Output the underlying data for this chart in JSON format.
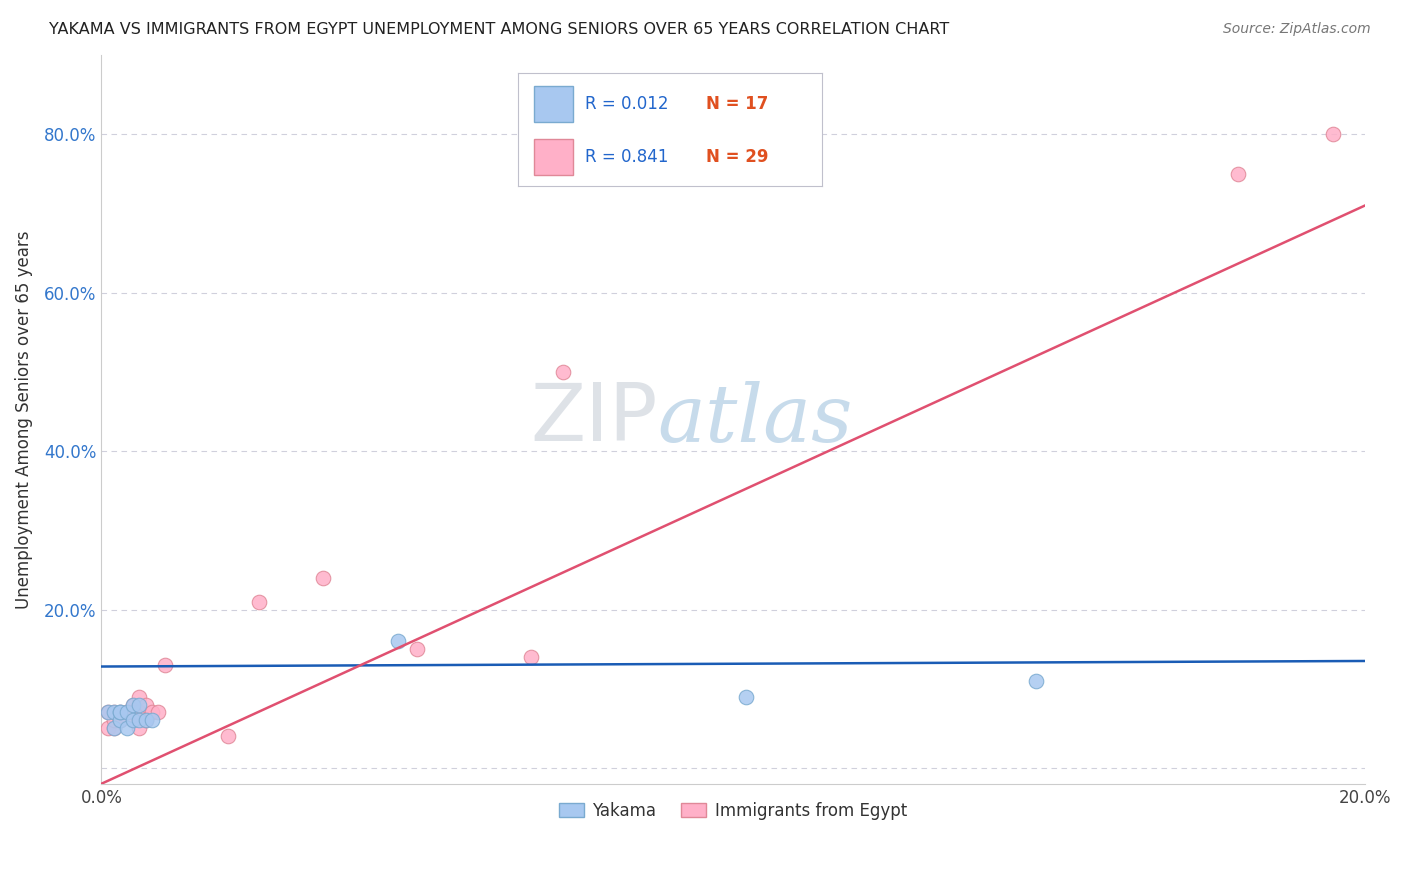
{
  "title": "YAKAMA VS IMMIGRANTS FROM EGYPT UNEMPLOYMENT AMONG SENIORS OVER 65 YEARS CORRELATION CHART",
  "source": "Source: ZipAtlas.com",
  "ylabel": "Unemployment Among Seniors over 65 years",
  "xlim": [
    0.0,
    0.2
  ],
  "ylim": [
    -0.02,
    0.9
  ],
  "x_ticks": [
    0.0,
    0.05,
    0.1,
    0.15,
    0.2
  ],
  "x_tick_labels": [
    "0.0%",
    "",
    "",
    "",
    "20.0%"
  ],
  "y_ticks": [
    0.0,
    0.2,
    0.4,
    0.6,
    0.8
  ],
  "y_tick_labels": [
    "",
    "20.0%",
    "40.0%",
    "60.0%",
    "80.0%"
  ],
  "yakama_color": "#a8c8f0",
  "yakama_edge": "#7aaad0",
  "egypt_color": "#ffb0c8",
  "egypt_edge": "#e08898",
  "yakama_line_color": "#1a5cb5",
  "egypt_line_color": "#e05070",
  "watermark_zip": "ZIP",
  "watermark_atlas": "atlas",
  "grid_color": "#d0d0dc",
  "legend_r1": "R = 0.012",
  "legend_n1": "N = 17",
  "legend_r2": "R = 0.841",
  "legend_n2": "N = 29",
  "yakama_x": [
    0.001,
    0.002,
    0.002,
    0.003,
    0.003,
    0.003,
    0.004,
    0.004,
    0.005,
    0.005,
    0.006,
    0.006,
    0.007,
    0.008,
    0.047,
    0.102,
    0.148
  ],
  "yakama_y": [
    0.07,
    0.05,
    0.07,
    0.06,
    0.07,
    0.07,
    0.07,
    0.05,
    0.08,
    0.06,
    0.06,
    0.08,
    0.06,
    0.06,
    0.16,
    0.09,
    0.11
  ],
  "egypt_x": [
    0.001,
    0.001,
    0.002,
    0.002,
    0.002,
    0.003,
    0.003,
    0.003,
    0.004,
    0.004,
    0.005,
    0.005,
    0.005,
    0.006,
    0.006,
    0.006,
    0.007,
    0.007,
    0.008,
    0.009,
    0.01,
    0.02,
    0.025,
    0.035,
    0.05,
    0.068,
    0.073,
    0.18,
    0.195
  ],
  "egypt_y": [
    0.05,
    0.07,
    0.05,
    0.06,
    0.07,
    0.06,
    0.07,
    0.06,
    0.07,
    0.07,
    0.06,
    0.08,
    0.07,
    0.05,
    0.07,
    0.09,
    0.06,
    0.08,
    0.07,
    0.07,
    0.13,
    0.04,
    0.21,
    0.24,
    0.15,
    0.14,
    0.5,
    0.75,
    0.8
  ],
  "yakama_line_x": [
    0.0,
    0.2
  ],
  "yakama_line_y": [
    0.128,
    0.135
  ],
  "egypt_line_x": [
    0.0,
    0.2
  ],
  "egypt_line_y": [
    -0.02,
    0.71
  ]
}
